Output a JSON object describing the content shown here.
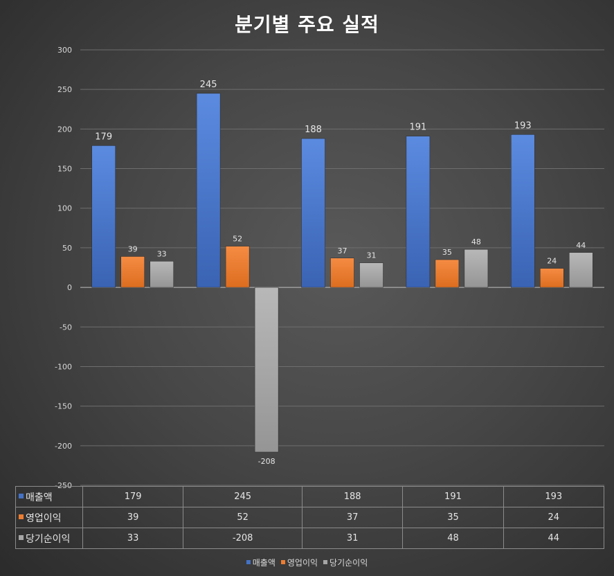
{
  "chart_data": {
    "type": "bar",
    "title": "분기별 주요 실적",
    "xlabel": "",
    "ylabel": "",
    "ylim": [
      -250,
      300
    ],
    "yticks": [
      300,
      250,
      200,
      150,
      100,
      50,
      0,
      -50,
      -100,
      -150,
      -200,
      -250
    ],
    "categories": [
      "",
      "",
      "",
      "",
      ""
    ],
    "series": [
      {
        "name": "매출액",
        "color": "#4472C4",
        "values": [
          179,
          245,
          188,
          191,
          193
        ]
      },
      {
        "name": "영업이익",
        "color": "#ED7D31",
        "values": [
          39,
          52,
          37,
          35,
          24
        ]
      },
      {
        "name": "당기순이익",
        "color": "#A5A5A5",
        "values": [
          33,
          -208,
          31,
          48,
          44
        ]
      }
    ],
    "grid": true,
    "legend": "bottom",
    "data_table": true
  }
}
